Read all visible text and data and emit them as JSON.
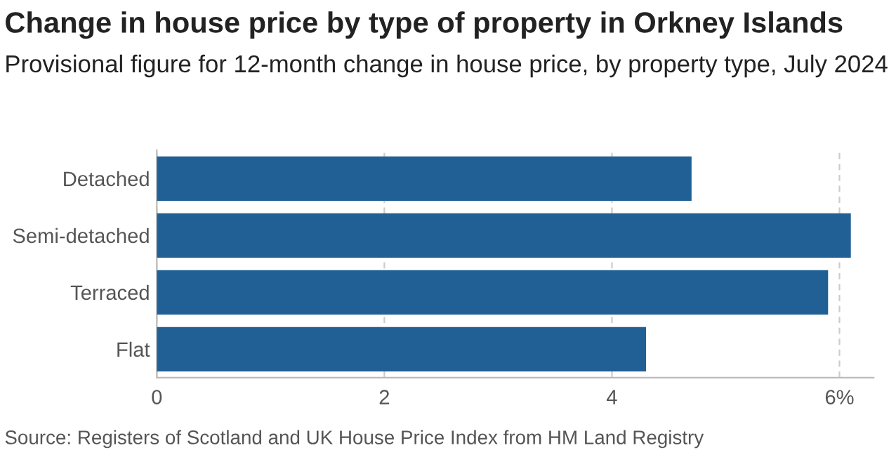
{
  "chart_data": {
    "type": "bar",
    "orientation": "horizontal",
    "title": "Change in house price by type of property in Orkney Islands",
    "subtitle": "Provisional figure for 12-month change in house price, by property type, July 2024",
    "categories": [
      "Detached",
      "Semi-detached",
      "Terraced",
      "Flat"
    ],
    "values": [
      4.7,
      6.1,
      5.9,
      4.3
    ],
    "color": "#206095",
    "xlim": [
      0,
      6.3
    ],
    "xticks": [
      0,
      2,
      4,
      {
        "value": 6,
        "label": "6%"
      }
    ],
    "grid": "x",
    "annotations": [
      "Source: Registers of Scotland and UK House Price Index from HM Land Registry"
    ]
  }
}
